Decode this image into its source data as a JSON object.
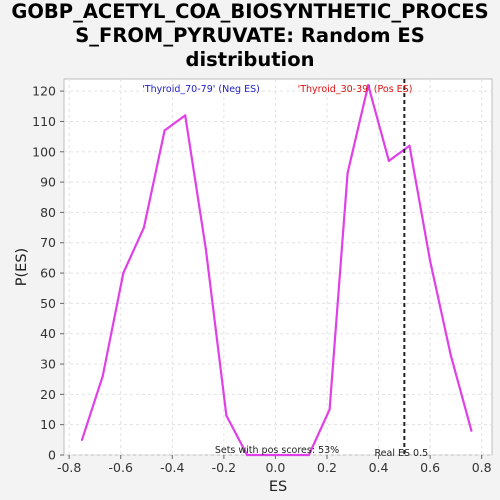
{
  "title_lines": [
    "GOBP_ACETYL_COA_BIOSYNTHETIC_PROCES",
    "S_FROM_PYRUVATE: Random ES",
    "distribution"
  ],
  "chart_data": {
    "type": "line",
    "title": "GOBP_ACETYL_COA_BIOSYNTHETIC_PROCESS_FROM_PYRUVATE: Random ES distribution",
    "xlabel": "ES",
    "ylabel": "P(ES)",
    "xlim": [
      -0.82,
      0.84
    ],
    "ylim": [
      0,
      124
    ],
    "xticks": [
      -0.8,
      -0.6,
      -0.4,
      -0.2,
      0.0,
      0.2,
      0.4,
      0.6,
      0.8
    ],
    "xtick_labels": [
      "-0.8",
      "-0.6",
      "-0.4",
      "-0.2",
      "0.0",
      "0.2",
      "0.4",
      "0.6",
      "0.8"
    ],
    "yticks": [
      0,
      10,
      20,
      30,
      40,
      50,
      60,
      70,
      80,
      90,
      100,
      110,
      120
    ],
    "grid": true,
    "series": [
      {
        "color": "#e040e8",
        "x": [
          -0.75,
          -0.67,
          -0.59,
          -0.51,
          -0.43,
          -0.35,
          -0.27,
          -0.19,
          -0.11,
          -0.03,
          0.05,
          0.13,
          0.21,
          0.28,
          0.36,
          0.44,
          0.52,
          0.6,
          0.68,
          0.76
        ],
        "y": [
          5,
          26,
          60,
          75,
          107,
          112,
          68,
          13,
          0,
          0,
          0,
          0,
          15,
          93,
          122,
          97,
          102,
          64,
          33,
          8
        ]
      }
    ],
    "real_es": {
      "value": 0.5,
      "label": "Real ES 0.5"
    },
    "annotations": {
      "neg": "'Thyroid_70-79' (Neg ES)",
      "pos": "'Thyroid_30-39' (Pos ES)",
      "pos_scores": "Sets with pos scores: 53%"
    },
    "colors": {
      "line": "#e040e8",
      "neg": "#2222cc",
      "pos": "#dd1111",
      "marker": "#222222"
    }
  }
}
